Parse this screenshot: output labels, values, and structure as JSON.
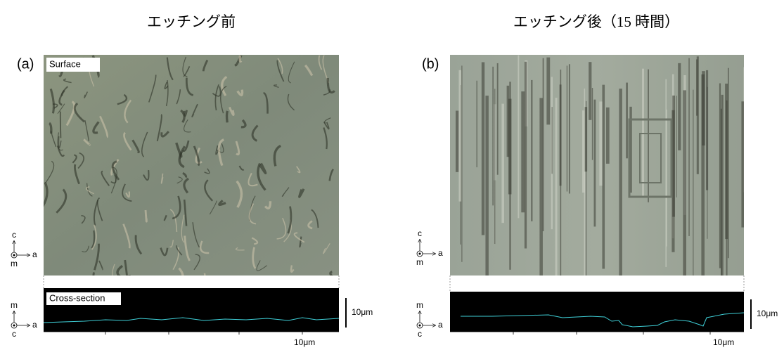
{
  "panels": [
    {
      "title": "エッチング前",
      "label": "(a)",
      "surface_label": "Surface",
      "cross_section_label": "Cross-section",
      "surface_axes": {
        "up": "c",
        "right": "a",
        "out": "m"
      },
      "section_axes": {
        "up": "m",
        "right": "a",
        "out": "c"
      },
      "vertical_scale": "10μm",
      "horizontal_scale": "10μm"
    },
    {
      "title": "エッチング後（15 時間）",
      "label": "(b)",
      "surface_axes": {
        "up": "c",
        "right": "a",
        "out": "m"
      },
      "section_axes": {
        "up": "m",
        "right": "a",
        "out": "c"
      },
      "vertical_scale": "10μm",
      "horizontal_scale": "10μm"
    }
  ]
}
